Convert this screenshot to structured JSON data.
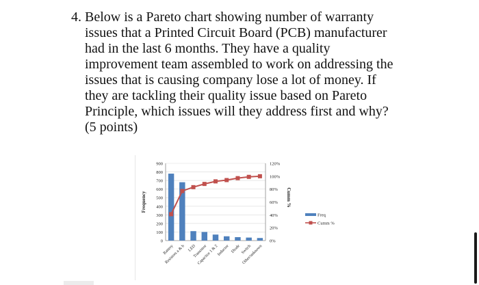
{
  "question": {
    "number": "4.",
    "lines": [
      "Below is a Pareto chart showing number of warranty",
      "issues that a Printed Circuit Board (PCB) manufacturer",
      "had in the last 6 months. They have a quality",
      "improvement team assembled to work on addressing the",
      "issues that is causing company lose a lot of money. If",
      "they are tackling their quality issue based on Pareto",
      "Principle, which issues will they address first and why?",
      "(5 points)"
    ]
  },
  "chart_data": {
    "type": "bar",
    "categories": [
      "Battery",
      "Resistors a & b",
      "LED",
      "Transistor",
      "Capacitor 1 & 2",
      "Inductor",
      "Diode",
      "Switch",
      "Other/unknown"
    ],
    "ylabel": "Frequency",
    "y2label": "Cumm %",
    "ylim": [
      0,
      900
    ],
    "yticks": [
      "0",
      "100",
      "200",
      "300",
      "400",
      "500",
      "600",
      "700",
      "800",
      "900"
    ],
    "y2lim": [
      0,
      120
    ],
    "y2ticks": [
      "0%",
      "20%",
      "40%",
      "60%",
      "80%",
      "100%",
      "120%"
    ],
    "series": [
      {
        "name": "Freq",
        "type": "bar",
        "values": [
          780,
          680,
          110,
          100,
          70,
          50,
          40,
          35,
          30
        ]
      },
      {
        "name": "Cumm %",
        "type": "line",
        "values": [
          41,
          77,
          83,
          88,
          92,
          94,
          97,
          99,
          100
        ]
      }
    ],
    "legend_position": "right",
    "colors": {
      "bar": "#4f81bd",
      "line": "#c0504d"
    }
  }
}
